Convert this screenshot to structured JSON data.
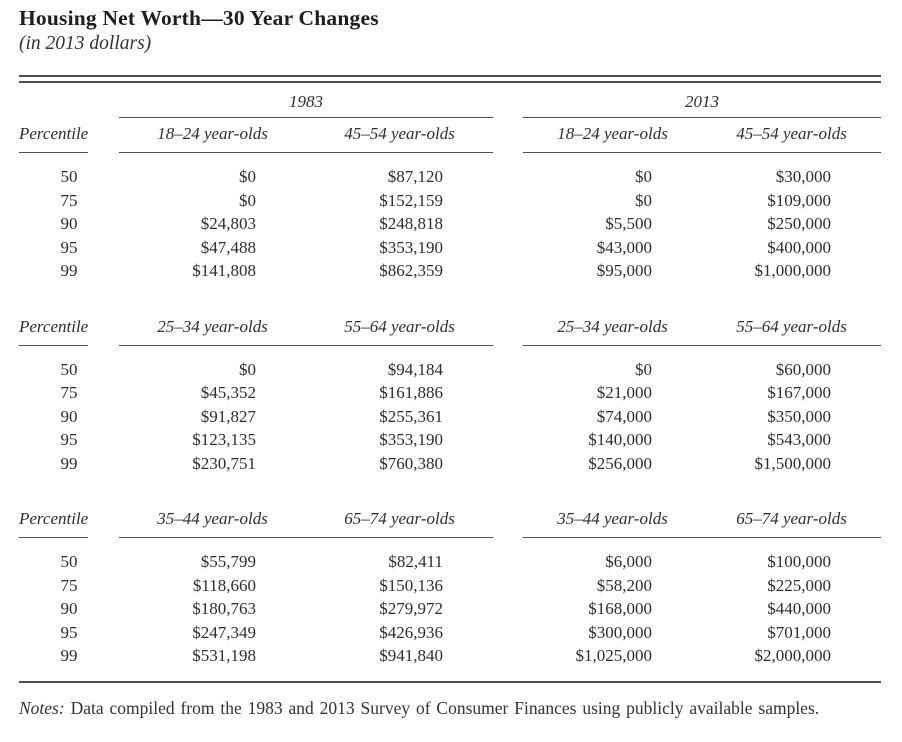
{
  "page": {
    "title": "Housing Net Worth—30 Year Changes",
    "subtitle": "(in 2013 dollars)",
    "notes_label": "Notes:",
    "notes_text": "Data compiled from the 1983 and 2013 Survey of Consumer Finances using publicly available samples."
  },
  "table": {
    "year_groups": [
      "1983",
      "2013"
    ],
    "percentile_header": "Percentile",
    "sections": [
      {
        "columns": [
          "18–24 year-olds",
          "45–54 year-olds",
          "18–24 year-olds",
          "45–54 year-olds"
        ],
        "rows": [
          {
            "p": "50",
            "v": [
              "$0",
              "$87,120",
              "$0",
              "$30,000"
            ]
          },
          {
            "p": "75",
            "v": [
              "$0",
              "$152,159",
              "$0",
              "$109,000"
            ]
          },
          {
            "p": "90",
            "v": [
              "$24,803",
              "$248,818",
              "$5,500",
              "$250,000"
            ]
          },
          {
            "p": "95",
            "v": [
              "$47,488",
              "$353,190",
              "$43,000",
              "$400,000"
            ]
          },
          {
            "p": "99",
            "v": [
              "$141,808",
              "$862,359",
              "$95,000",
              "$1,000,000"
            ]
          }
        ]
      },
      {
        "columns": [
          "25–34 year-olds",
          "55–64 year-olds",
          "25–34 year-olds",
          "55–64 year-olds"
        ],
        "rows": [
          {
            "p": "50",
            "v": [
              "$0",
              "$94,184",
              "$0",
              "$60,000"
            ]
          },
          {
            "p": "75",
            "v": [
              "$45,352",
              "$161,886",
              "$21,000",
              "$167,000"
            ]
          },
          {
            "p": "90",
            "v": [
              "$91,827",
              "$255,361",
              "$74,000",
              "$350,000"
            ]
          },
          {
            "p": "95",
            "v": [
              "$123,135",
              "$353,190",
              "$140,000",
              "$543,000"
            ]
          },
          {
            "p": "99",
            "v": [
              "$230,751",
              "$760,380",
              "$256,000",
              "$1,500,000"
            ]
          }
        ]
      },
      {
        "columns": [
          "35–44 year-olds",
          "65–74 year-olds",
          "35–44 year-olds",
          "65–74 year-olds"
        ],
        "rows": [
          {
            "p": "50",
            "v": [
              "$55,799",
              "$82,411",
              "$6,000",
              "$100,000"
            ]
          },
          {
            "p": "75",
            "v": [
              "$118,660",
              "$150,136",
              "$58,200",
              "$225,000"
            ]
          },
          {
            "p": "90",
            "v": [
              "$180,763",
              "$279,972",
              "$168,000",
              "$440,000"
            ]
          },
          {
            "p": "95",
            "v": [
              "$247,349",
              "$426,936",
              "$300,000",
              "$701,000"
            ]
          },
          {
            "p": "99",
            "v": [
              "$531,198",
              "$941,840",
              "$1,025,000",
              "$2,000,000"
            ]
          }
        ]
      }
    ]
  }
}
